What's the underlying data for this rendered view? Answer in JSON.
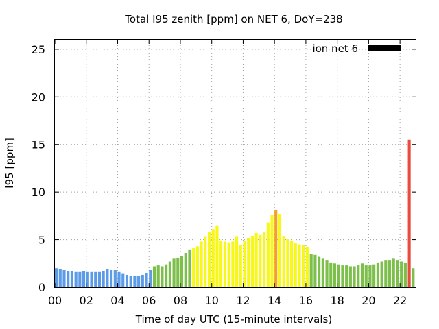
{
  "chart_data": {
    "type": "bar",
    "title": "Total I95 zenith [ppm] on NET 6, DoY=238",
    "xlabel": "Time of day UTC (15-minute intervals)",
    "ylabel": "I95 [ppm]",
    "xlim": [
      0,
      23
    ],
    "ylim": [
      0,
      26
    ],
    "xticks": [
      "00",
      "02",
      "04",
      "06",
      "08",
      "10",
      "12",
      "14",
      "16",
      "18",
      "20",
      "22"
    ],
    "yticks": [
      "0",
      "5",
      "10",
      "15",
      "20",
      "25"
    ],
    "grid": true,
    "legend": {
      "label": "ion net 6",
      "position": "top-right",
      "color": "#000000"
    },
    "bar_interval_hours": 0.25,
    "colors": {
      "blue": "#5b9be8",
      "green": "#7cbf4a",
      "yellow": "#f7f71a",
      "orange": "#f5a01e",
      "red": "#e84c3d"
    },
    "values": [
      2.0,
      1.9,
      1.8,
      1.7,
      1.7,
      1.6,
      1.6,
      1.7,
      1.6,
      1.6,
      1.6,
      1.6,
      1.7,
      1.9,
      1.8,
      1.8,
      1.6,
      1.4,
      1.3,
      1.2,
      1.2,
      1.2,
      1.3,
      1.5,
      1.8,
      2.2,
      2.3,
      2.2,
      2.4,
      2.7,
      3.0,
      3.1,
      3.3,
      3.6,
      3.9,
      4.1,
      4.3,
      4.8,
      5.3,
      5.8,
      6.1,
      6.5,
      4.9,
      4.8,
      4.7,
      4.8,
      5.3,
      4.4,
      4.9,
      5.2,
      5.4,
      5.7,
      5.5,
      5.8,
      6.8,
      7.6,
      8.1,
      7.7,
      5.4,
      5.1,
      4.9,
      4.6,
      4.5,
      4.4,
      4.2,
      3.5,
      3.4,
      3.2,
      3.0,
      2.8,
      2.6,
      2.5,
      2.4,
      2.3,
      2.3,
      2.2,
      2.2,
      2.3,
      2.5,
      2.3,
      2.3,
      2.4,
      2.6,
      2.7,
      2.8,
      2.8,
      3.0,
      2.8,
      2.7,
      2.6,
      15.5,
      2.0
    ],
    "bar_colors": [
      "blue",
      "blue",
      "blue",
      "blue",
      "blue",
      "blue",
      "blue",
      "blue",
      "blue",
      "blue",
      "blue",
      "blue",
      "blue",
      "blue",
      "blue",
      "blue",
      "blue",
      "blue",
      "blue",
      "blue",
      "blue",
      "blue",
      "blue",
      "blue",
      "blue",
      "green",
      "green",
      "green",
      "green",
      "green",
      "green",
      "green",
      "green",
      "green",
      "green",
      "yellow",
      "yellow",
      "yellow",
      "yellow",
      "yellow",
      "yellow",
      "yellow",
      "yellow",
      "yellow",
      "yellow",
      "yellow",
      "yellow",
      "yellow",
      "yellow",
      "yellow",
      "yellow",
      "yellow",
      "yellow",
      "yellow",
      "yellow",
      "yellow",
      "orange",
      "yellow",
      "yellow",
      "yellow",
      "yellow",
      "yellow",
      "yellow",
      "yellow",
      "yellow",
      "green",
      "green",
      "green",
      "green",
      "green",
      "green",
      "green",
      "green",
      "green",
      "green",
      "green",
      "green",
      "green",
      "green",
      "green",
      "green",
      "green",
      "green",
      "green",
      "green",
      "green",
      "green",
      "green",
      "green",
      "green",
      "red",
      "green"
    ]
  }
}
